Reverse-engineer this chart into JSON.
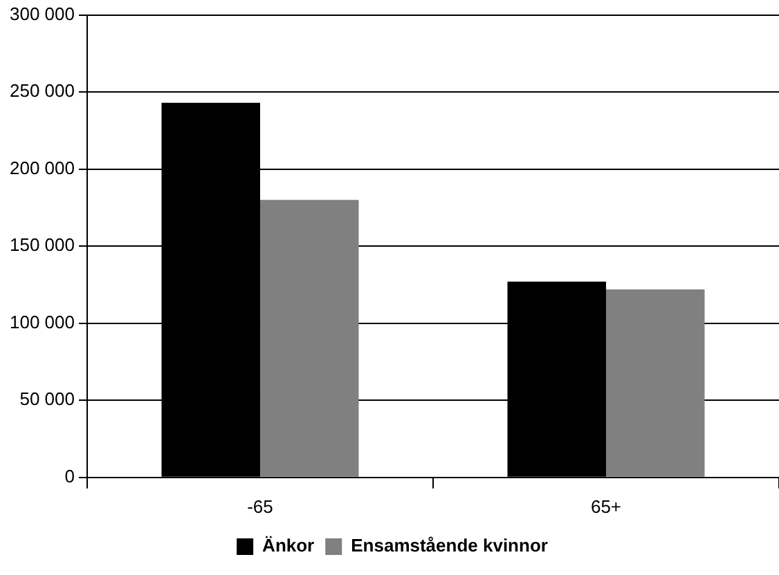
{
  "chart_data": {
    "type": "bar",
    "categories": [
      "-65",
      "65+"
    ],
    "series": [
      {
        "name": "Änkor",
        "color": "#000000",
        "values": [
          243000,
          127000
        ]
      },
      {
        "name": "Ensamstående kvinnor",
        "color": "#808080",
        "values": [
          180000,
          122000
        ]
      }
    ],
    "ylim": [
      0,
      300000
    ],
    "yticks": [
      {
        "value": 0,
        "label": "0"
      },
      {
        "value": 50000,
        "label": "50 000"
      },
      {
        "value": 100000,
        "label": "100 000"
      },
      {
        "value": 150000,
        "label": "150 000"
      },
      {
        "value": 200000,
        "label": "200 000"
      },
      {
        "value": 250000,
        "label": "250 000"
      },
      {
        "value": 300000,
        "label": "300 000"
      }
    ],
    "grid": "y",
    "legend": "bottom"
  }
}
